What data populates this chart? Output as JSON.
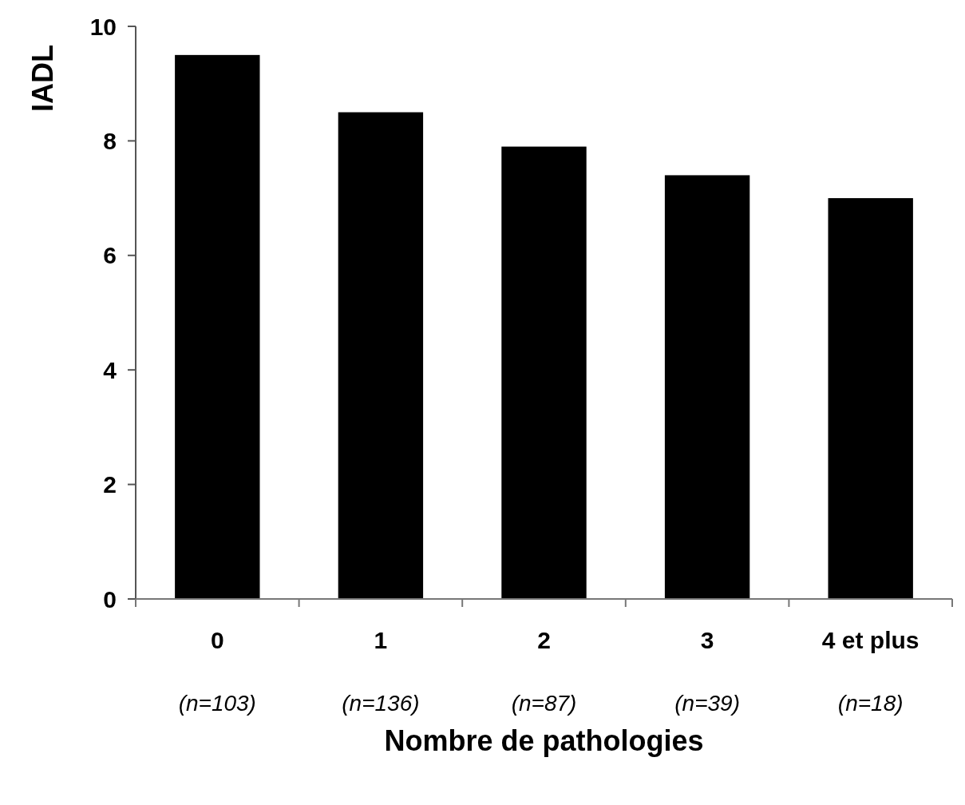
{
  "chart_data": {
    "type": "bar",
    "xlabel": "Nombre de pathologies",
    "ylabel": "IADL",
    "categories": [
      "0\n(n=103)",
      "1\n(n=136)",
      "2\n(n=87)",
      "3\n(n=39)",
      "4 et plus\n(n=18)"
    ],
    "values": [
      9.5,
      8.5,
      7.9,
      7.4,
      7.0
    ],
    "color": "#000000",
    "ylim": [
      0,
      10
    ],
    "yticks": [
      0,
      2,
      4,
      6,
      8,
      10
    ],
    "grid": false
  }
}
